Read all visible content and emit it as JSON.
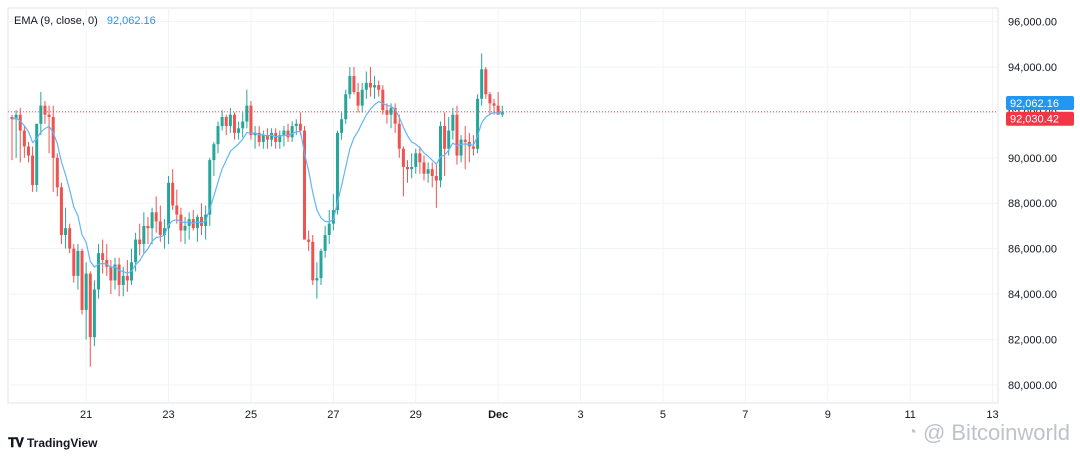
{
  "legend": {
    "label": "EMA (9, close, 0)",
    "value": "92,062.16"
  },
  "footer": {
    "brand": "TradingView",
    "brand_icon": "tradingview-logo-icon"
  },
  "watermark": {
    "text": "@ Bitcoinworld",
    "icon": "weibo-icon"
  },
  "colors": {
    "up": "#26a69a",
    "down": "#ef5350",
    "ema": "#64b5f6",
    "ema_tag": "#2196f3",
    "price_tag": "#f23645",
    "grid": "#f0f3fa"
  },
  "chart_data": {
    "type": "candlestick",
    "title": "",
    "xlabel": "",
    "ylabel": "",
    "ylim": [
      79200,
      96600
    ],
    "y_ticks": [
      "96,000.00",
      "94,000.00",
      "92,000.00",
      "90,000.00",
      "88,000.00",
      "86,000.00",
      "84,000.00",
      "82,000.00",
      "80,000.00"
    ],
    "x_ticks": [
      {
        "label": "21",
        "index": 18
      },
      {
        "label": "23",
        "index": 38
      },
      {
        "label": "25",
        "index": 58
      },
      {
        "label": "27",
        "index": 78
      },
      {
        "label": "29",
        "index": 98
      },
      {
        "label": "Dec",
        "index": 118
      },
      {
        "label": "3",
        "index": 138
      },
      {
        "label": "5",
        "index": 158
      },
      {
        "label": "7",
        "index": 178
      },
      {
        "label": "9",
        "index": 198
      },
      {
        "label": "11",
        "index": 218
      },
      {
        "label": "13",
        "index": 238
      }
    ],
    "price_tags": [
      {
        "name": "EMA",
        "value": 92062.16,
        "label": "92,062.16"
      },
      {
        "name": "Last",
        "value": 92030.42,
        "label": "92,030.42"
      }
    ],
    "candles": [
      [
        91800,
        91900,
        89900,
        91700
      ],
      [
        91700,
        92100,
        90000,
        91900
      ],
      [
        91900,
        92200,
        89800,
        91200
      ],
      [
        91200,
        91400,
        90000,
        90500
      ],
      [
        90500,
        90700,
        89800,
        90100
      ],
      [
        90100,
        90500,
        88500,
        88800
      ],
      [
        88800,
        91500,
        88500,
        91500
      ],
      [
        91500,
        92900,
        91000,
        92300
      ],
      [
        92300,
        92500,
        91500,
        91900
      ],
      [
        91900,
        92300,
        90200,
        91800
      ],
      [
        91800,
        92300,
        88500,
        90000
      ],
      [
        90000,
        90200,
        88300,
        88700
      ],
      [
        88700,
        88900,
        86200,
        86600
      ],
      [
        86600,
        87800,
        86000,
        86900
      ],
      [
        86900,
        87100,
        85800,
        86000
      ],
      [
        86000,
        86200,
        84500,
        84800
      ],
      [
        84800,
        86200,
        84200,
        85900
      ],
      [
        85900,
        86000,
        83100,
        83300
      ],
      [
        83300,
        85400,
        82000,
        84900
      ],
      [
        84900,
        85000,
        80800,
        82100
      ],
      [
        82100,
        84600,
        81700,
        84200
      ],
      [
        84200,
        86200,
        83800,
        85800
      ],
      [
        85800,
        86400,
        84900,
        85500
      ],
      [
        85500,
        86200,
        84800,
        85200
      ],
      [
        85200,
        85500,
        84000,
        84600
      ],
      [
        84600,
        85600,
        84200,
        85300
      ],
      [
        85300,
        85600,
        83900,
        84400
      ],
      [
        84400,
        85200,
        83900,
        84800
      ],
      [
        84800,
        85500,
        84100,
        84600
      ],
      [
        84600,
        86000,
        84400,
        85400
      ],
      [
        85400,
        86700,
        85000,
        86400
      ],
      [
        86400,
        87100,
        85700,
        86200
      ],
      [
        86200,
        87600,
        85800,
        87000
      ],
      [
        87000,
        87400,
        86200,
        86900
      ],
      [
        86900,
        87800,
        86200,
        87600
      ],
      [
        87600,
        88300,
        86700,
        87200
      ],
      [
        87200,
        87900,
        86300,
        86600
      ],
      [
        86600,
        87300,
        86000,
        86900
      ],
      [
        86900,
        89200,
        86200,
        88900
      ],
      [
        88900,
        89500,
        87700,
        87900
      ],
      [
        87900,
        88600,
        87100,
        87500
      ],
      [
        87500,
        87800,
        86300,
        86800
      ],
      [
        86800,
        87400,
        86200,
        87000
      ],
      [
        87000,
        87600,
        86400,
        87300
      ],
      [
        87300,
        87700,
        86800,
        86900
      ],
      [
        86900,
        87500,
        86300,
        87400
      ],
      [
        87400,
        88000,
        86600,
        87000
      ],
      [
        87000,
        87900,
        86400,
        87500
      ],
      [
        87500,
        90000,
        87000,
        89900
      ],
      [
        89900,
        90700,
        89200,
        90600
      ],
      [
        90600,
        91600,
        90200,
        91400
      ],
      [
        91400,
        92100,
        91200,
        91800
      ],
      [
        91800,
        91900,
        91000,
        91400
      ],
      [
        91400,
        92200,
        91100,
        91900
      ],
      [
        91900,
        92000,
        90800,
        91100
      ],
      [
        91100,
        91600,
        90800,
        91300
      ],
      [
        91300,
        92000,
        90900,
        91600
      ],
      [
        91600,
        93000,
        91300,
        92300
      ],
      [
        92300,
        92500,
        90800,
        91000
      ],
      [
        91000,
        91400,
        90400,
        91100
      ],
      [
        91100,
        91400,
        90500,
        90700
      ],
      [
        90700,
        91200,
        90400,
        91000
      ],
      [
        91000,
        91300,
        90400,
        90800
      ],
      [
        90800,
        91300,
        90500,
        91100
      ],
      [
        91100,
        91300,
        90400,
        90700
      ],
      [
        90700,
        91200,
        90400,
        91000
      ],
      [
        91000,
        91400,
        90500,
        91200
      ],
      [
        91200,
        91500,
        90700,
        90900
      ],
      [
        90900,
        91600,
        90700,
        91400
      ],
      [
        91400,
        91700,
        91000,
        91500
      ],
      [
        91500,
        92000,
        91000,
        91200
      ],
      [
        91200,
        91400,
        86400,
        86400
      ],
      [
        86400,
        86800,
        85900,
        86300
      ],
      [
        86300,
        86600,
        84400,
        84600
      ],
      [
        84600,
        85400,
        83800,
        84700
      ],
      [
        84700,
        86000,
        84400,
        85900
      ],
      [
        85900,
        87000,
        85600,
        86600
      ],
      [
        86600,
        87700,
        86200,
        87100
      ],
      [
        87100,
        88400,
        86800,
        87700
      ],
      [
        87700,
        91200,
        87500,
        91100
      ],
      [
        91100,
        92000,
        90800,
        91700
      ],
      [
        91700,
        93000,
        91500,
        92800
      ],
      [
        92800,
        94000,
        92600,
        93600
      ],
      [
        93600,
        94000,
        92800,
        92900
      ],
      [
        92900,
        93300,
        92000,
        92300
      ],
      [
        92300,
        93300,
        92000,
        93000
      ],
      [
        93000,
        93800,
        92600,
        93300
      ],
      [
        93300,
        94000,
        92700,
        93100
      ],
      [
        93100,
        93600,
        92600,
        93200
      ],
      [
        93200,
        93400,
        92700,
        93000
      ],
      [
        93000,
        93200,
        91900,
        92100
      ],
      [
        92100,
        92400,
        91500,
        91900
      ],
      [
        91900,
        92400,
        91300,
        92200
      ],
      [
        92200,
        92400,
        91100,
        91500
      ],
      [
        91500,
        91900,
        90000,
        90400
      ],
      [
        90400,
        90500,
        88300,
        89600
      ],
      [
        89600,
        89900,
        88900,
        89500
      ],
      [
        89500,
        90200,
        89100,
        89600
      ],
      [
        89600,
        90400,
        89300,
        90200
      ],
      [
        90200,
        90500,
        89300,
        89800
      ],
      [
        89800,
        90100,
        89000,
        89300
      ],
      [
        89300,
        89800,
        88900,
        89500
      ],
      [
        89500,
        89800,
        88700,
        89200
      ],
      [
        89200,
        89700,
        87800,
        89000
      ],
      [
        89000,
        91600,
        88700,
        91400
      ],
      [
        91400,
        92000,
        89200,
        90400
      ],
      [
        90400,
        91800,
        90100,
        91200
      ],
      [
        91200,
        92200,
        90800,
        91900
      ],
      [
        91900,
        92300,
        89700,
        90100
      ],
      [
        90100,
        91000,
        89800,
        90800
      ],
      [
        90800,
        91400,
        89500,
        90700
      ],
      [
        90700,
        91100,
        89800,
        90500
      ],
      [
        90500,
        91000,
        90100,
        90400
      ],
      [
        90400,
        92800,
        90200,
        92600
      ],
      [
        92600,
        94600,
        92300,
        93900
      ],
      [
        93900,
        94000,
        92600,
        92800
      ],
      [
        92800,
        92900,
        91900,
        92400
      ],
      [
        92400,
        92600,
        91900,
        92300
      ],
      [
        92300,
        92900,
        91900,
        91900
      ],
      [
        91900,
        92300,
        91800,
        92030.42
      ]
    ],
    "ema_period": 9
  }
}
